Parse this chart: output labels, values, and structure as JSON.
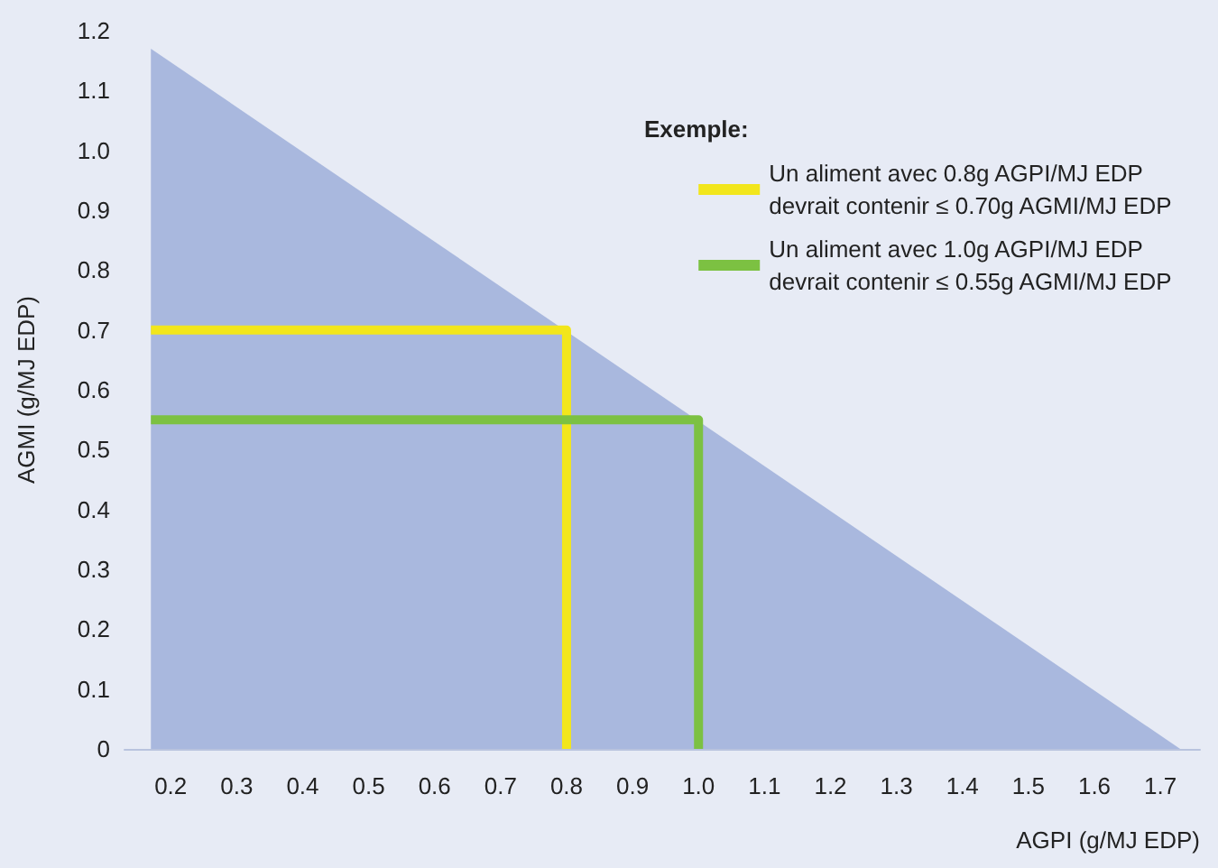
{
  "chart_data": {
    "type": "line",
    "xlabel": "AGPI (g/MJ EDP)",
    "ylabel": "AGMI (g/MJ EDP)",
    "legend_title": "Exemple:",
    "xlim": [
      0.13,
      1.76
    ],
    "xticks": [
      0.2,
      0.3,
      0.4,
      0.5,
      0.6,
      0.7,
      0.8,
      0.9,
      {
        "value": 1,
        "label": "1.0"
      },
      1.1,
      1.2,
      1.3,
      1.4,
      1.5,
      1.6,
      1.7
    ],
    "ylim": [
      0,
      1.2
    ],
    "yticks": [
      0,
      0.1,
      0.2,
      0.3,
      0.4,
      0.5,
      0.6,
      0.7,
      0.8,
      0.9,
      {
        "value": 1,
        "label": "1.0"
      },
      1.1,
      1.2
    ],
    "series": [
      {
        "type": "area",
        "color": "#a9b8de",
        "x": [
          0.17,
          1.73
        ],
        "values": [
          1.17,
          0
        ]
      },
      {
        "name": "Un aliment avec 0.8g AGPI/MJ EDP\ndevrait contenir ≤ 0.70g AGMI/MJ EDP",
        "color": "#f2e61c",
        "x": [
          0.17,
          0.8,
          0.8
        ],
        "values": [
          0.7,
          0.7,
          0
        ]
      },
      {
        "name": "Un aliment avec 1.0g AGPI/MJ EDP\ndevrait contenir ≤ 0.55g AGMI/MJ EDP",
        "color": "#7cc142",
        "x": [
          0.17,
          1.0,
          1.0
        ],
        "values": [
          0.55,
          0.55,
          0
        ]
      }
    ],
    "legend": "top right",
    "grid": false,
    "marker": "none",
    "line_style": "solid"
  }
}
